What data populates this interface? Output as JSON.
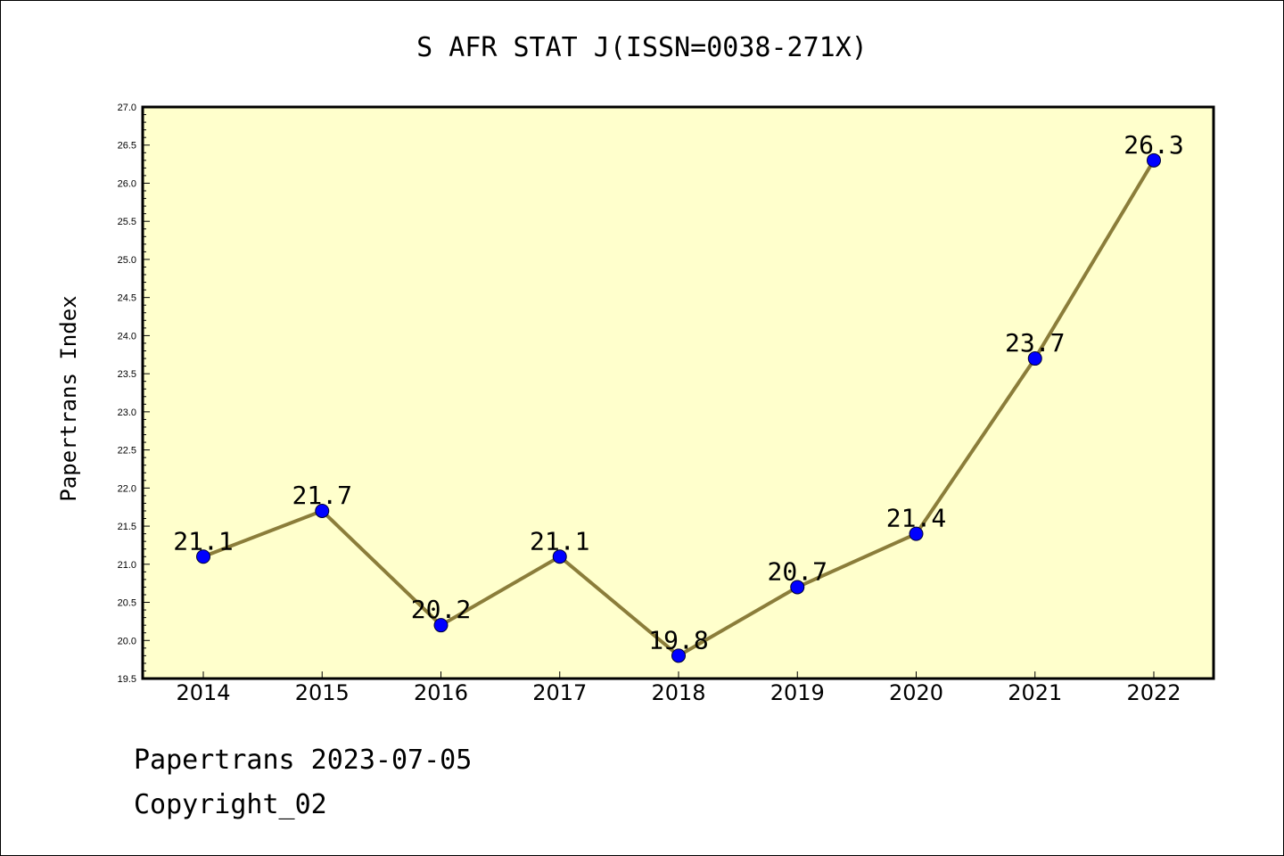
{
  "title": "S AFR STAT J(ISSN=0038-271X)",
  "footer": {
    "line1": "Papertrans 2023-07-05",
    "line2": "Copyright_02"
  },
  "colors": {
    "plot_background": "#ffffcc",
    "line": "#8b7d3a",
    "marker": "#0000ff"
  },
  "chart_data": {
    "type": "line",
    "title": "S AFR STAT J(ISSN=0038-271X)",
    "xlabel": "",
    "ylabel": "Papertrans Index",
    "x": [
      "2014",
      "2015",
      "2016",
      "2017",
      "2018",
      "2019",
      "2020",
      "2021",
      "2022"
    ],
    "series": [
      {
        "values": [
          21.1,
          21.7,
          20.2,
          21.1,
          19.8,
          20.7,
          21.4,
          23.7,
          26.3
        ]
      }
    ],
    "data_labels": [
      "21.1",
      "21.7",
      "20.2",
      "21.1",
      "19.8",
      "20.7",
      "21.4",
      "23.7",
      "26.3"
    ],
    "ylim": [
      19.5,
      27.0
    ],
    "yticks": [
      "19.5",
      "20.0",
      "20.5",
      "21.0",
      "21.5",
      "22.0",
      "22.5",
      "23.0",
      "23.5",
      "24.0",
      "24.5",
      "25.0",
      "25.5",
      "26.0",
      "26.5",
      "27.0"
    ],
    "grid": false,
    "legend": "none"
  }
}
